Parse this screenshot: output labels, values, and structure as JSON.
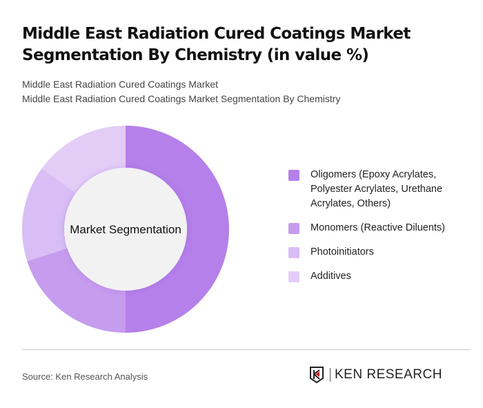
{
  "title": "Middle East Radiation Cured Coatings Market Segmentation By Chemistry (in value %)",
  "subtitle1": "Middle East Radiation Cured Coatings Market",
  "subtitle2": "Middle East Radiation Cured Coatings Market Segmentation By Chemistry",
  "chart_data": {
    "type": "pie",
    "donut": true,
    "center_label": "Market Segmentation",
    "categories": [
      "Oligomers (Epoxy Acrylates, Polyester Acrylates, Urethane Acrylates, Others)",
      "Monomers (Reactive Diluents)",
      "Photoinitiators",
      "Additives"
    ],
    "values": [
      50,
      20,
      15,
      15
    ],
    "colors": [
      "#b580ea",
      "#c59cee",
      "#d9bdf5",
      "#e3cdf7"
    ],
    "legend": "right"
  },
  "footer": {
    "source": "Source: Ken Research Analysis",
    "logo_text": "KEN RESEARCH"
  }
}
